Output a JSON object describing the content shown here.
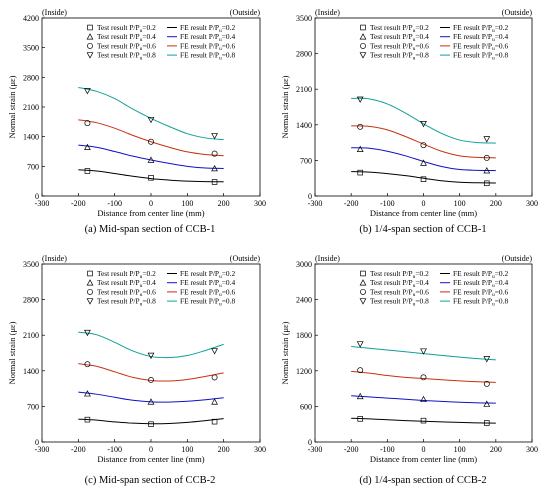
{
  "legend_labels": {
    "test": [
      "Test result P/P",
      "Test result P/P",
      "Test result P/P",
      "Test result P/P"
    ],
    "fe": [
      "FE result P/P",
      "FE result P/P",
      "FE result P/P",
      "FE result P/P"
    ],
    "subscript": "u",
    "ratios": [
      "=0.2",
      "=0.4",
      "=0.6",
      "=0.8"
    ]
  },
  "series_colors": [
    "#000000",
    "#1010c8",
    "#c83010",
    "#10a098"
  ],
  "marker_shapes": [
    "square",
    "triangle-up",
    "circle",
    "triangle-down"
  ],
  "chart_data": [
    {
      "type": "line",
      "caption": "(a) Mid-span section of CCB-1",
      "xlabel": "Distance from center line (mm)",
      "ylabel": "Normal strain (με)",
      "corner_left": "(Inside)",
      "corner_right": "(Outside)",
      "xlim": [
        -300,
        300
      ],
      "xticks": [
        -300,
        -200,
        -100,
        0,
        100,
        200,
        300
      ],
      "ylim": [
        0,
        4200
      ],
      "yticks": [
        0,
        700,
        1400,
        2100,
        2800,
        3500,
        4200
      ],
      "test_x": [
        -175,
        0,
        175
      ],
      "fe_x": [
        -200,
        -150,
        -100,
        -50,
        0,
        50,
        100,
        150,
        200
      ],
      "series": [
        {
          "test_y": [
            590,
            430,
            330
          ],
          "fe_y": [
            620,
            590,
            530,
            465,
            410,
            375,
            350,
            338,
            335
          ]
        },
        {
          "test_y": [
            1150,
            850,
            650
          ],
          "fe_y": [
            1200,
            1150,
            1050,
            940,
            850,
            770,
            700,
            660,
            650
          ]
        },
        {
          "test_y": [
            1720,
            1280,
            1000
          ],
          "fe_y": [
            1800,
            1730,
            1600,
            1430,
            1280,
            1150,
            1040,
            980,
            950
          ]
        },
        {
          "test_y": [
            2480,
            1800,
            1420
          ],
          "fe_y": [
            2560,
            2470,
            2300,
            2050,
            1830,
            1640,
            1470,
            1370,
            1330
          ]
        }
      ]
    },
    {
      "type": "line",
      "caption": "(b) 1/4-span section of CCB-1",
      "xlabel": "Distance from center line (mm)",
      "ylabel": "Normal strain (με)",
      "corner_left": "(Inside)",
      "corner_right": "(Outside)",
      "xlim": [
        -300,
        300
      ],
      "xticks": [
        -300,
        -200,
        -100,
        0,
        100,
        200,
        300
      ],
      "ylim": [
        0,
        3500
      ],
      "yticks": [
        0,
        700,
        1400,
        2100,
        2800,
        3500
      ],
      "test_x": [
        -175,
        0,
        175
      ],
      "fe_x": [
        -200,
        -150,
        -100,
        -50,
        0,
        50,
        100,
        150,
        200
      ],
      "series": [
        {
          "test_y": [
            460,
            330,
            250
          ],
          "fe_y": [
            480,
            470,
            440,
            400,
            350,
            300,
            270,
            260,
            255
          ]
        },
        {
          "test_y": [
            920,
            650,
            500
          ],
          "fe_y": [
            950,
            940,
            880,
            790,
            680,
            580,
            520,
            505,
            500
          ]
        },
        {
          "test_y": [
            1360,
            1000,
            750
          ],
          "fe_y": [
            1380,
            1370,
            1300,
            1170,
            1020,
            880,
            790,
            760,
            750
          ]
        },
        {
          "test_y": [
            1900,
            1420,
            1120
          ],
          "fe_y": [
            1920,
            1910,
            1810,
            1630,
            1420,
            1230,
            1100,
            1050,
            1040
          ]
        }
      ]
    },
    {
      "type": "line",
      "caption": "(c) Mid-span section of CCB-2",
      "xlabel": "Distance from center line (mm)",
      "ylabel": "Normal strain (με)",
      "corner_left": "(Inside)",
      "corner_right": "(Outside)",
      "xlim": [
        -300,
        300
      ],
      "xticks": [
        -300,
        -200,
        -100,
        0,
        100,
        200,
        300
      ],
      "ylim": [
        0,
        3500
      ],
      "yticks": [
        0,
        700,
        1400,
        2100,
        2800,
        3500
      ],
      "test_x": [
        -175,
        0,
        175
      ],
      "fe_x": [
        -200,
        -150,
        -100,
        -50,
        0,
        50,
        100,
        150,
        200
      ],
      "series": [
        {
          "test_y": [
            440,
            350,
            400
          ],
          "fe_y": [
            450,
            430,
            395,
            370,
            360,
            365,
            385,
            420,
            460
          ]
        },
        {
          "test_y": [
            950,
            790,
            790
          ],
          "fe_y": [
            980,
            940,
            880,
            820,
            790,
            785,
            800,
            830,
            870
          ]
        },
        {
          "test_y": [
            1530,
            1220,
            1270
          ],
          "fe_y": [
            1540,
            1490,
            1380,
            1270,
            1210,
            1200,
            1230,
            1290,
            1360
          ]
        },
        {
          "test_y": [
            2150,
            1700,
            1790
          ],
          "fe_y": [
            2160,
            2110,
            1960,
            1790,
            1680,
            1660,
            1700,
            1800,
            1920
          ]
        }
      ]
    },
    {
      "type": "line",
      "caption": "(d) 1/4-span section of CCB-2",
      "xlabel": "Distance from center line (mm)",
      "ylabel": "Normal strain (με)",
      "corner_left": "(Inside)",
      "corner_right": "(Outside)",
      "xlim": [
        -300,
        300
      ],
      "xticks": [
        -300,
        -200,
        -100,
        0,
        100,
        200,
        300
      ],
      "ylim": [
        0,
        3000
      ],
      "yticks": [
        0,
        600,
        1200,
        1800,
        2400,
        3000
      ],
      "test_x": [
        -175,
        0,
        175
      ],
      "fe_x": [
        -200,
        -150,
        -100,
        -50,
        0,
        50,
        100,
        150,
        200
      ],
      "series": [
        {
          "test_y": [
            390,
            360,
            320
          ],
          "fe_y": [
            400,
            390,
            375,
            360,
            350,
            340,
            330,
            322,
            318
          ]
        },
        {
          "test_y": [
            770,
            720,
            640
          ],
          "fe_y": [
            780,
            760,
            740,
            720,
            700,
            685,
            670,
            660,
            655
          ]
        },
        {
          "test_y": [
            1210,
            1090,
            980
          ],
          "fe_y": [
            1190,
            1160,
            1120,
            1090,
            1070,
            1050,
            1030,
            1015,
            1005
          ]
        },
        {
          "test_y": [
            1650,
            1530,
            1400
          ],
          "fe_y": [
            1610,
            1580,
            1550,
            1520,
            1490,
            1460,
            1430,
            1405,
            1385
          ]
        }
      ]
    }
  ]
}
